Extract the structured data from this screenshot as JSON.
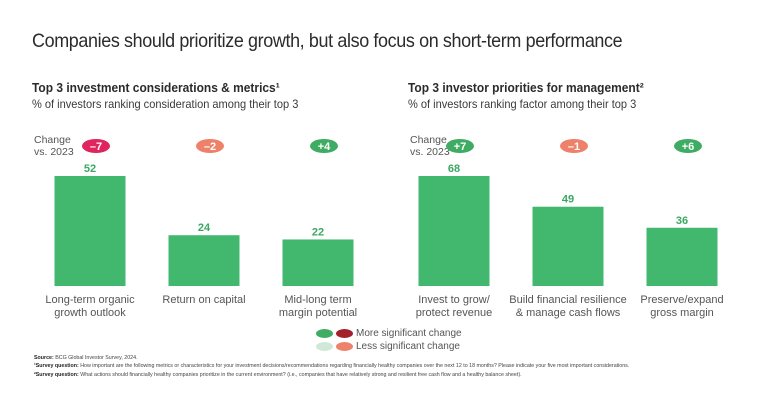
{
  "title": "Companies should prioritize growth, but also focus on short-term performance",
  "change_label_line1": "Change",
  "change_label_line2": "vs. 2023",
  "colors": {
    "bar": "#42b86f",
    "bar_label": "#3aa862",
    "more_sig_positive": "#3fac64",
    "more_sig_negative": "#a31f2c",
    "less_sig_positive": "#cfe9d6",
    "less_sig_negative": "#ee8169",
    "strong_negative_badge": "#e0245e"
  },
  "legend": {
    "more": "More significant change",
    "less": "Less significant change"
  },
  "footnotes": {
    "source_label": "Source:",
    "source_text": " BCG Global Investor Survey, 2024.",
    "q1_label": "¹Survey question:",
    "q1_text": " How important are the following metrics or characteristics for your investment decisions/recommendations regarding financially healthy companies over the next 12 to 18 months? Please indicate your five most important considerations.",
    "q2_label": "²Survey question:",
    "q2_text": " What actions should financially healthy companies prioritize in the current environment? (i.e., companies that have relatively strong and resilient free cash flow and a healthy balance sheet)."
  },
  "chart_data": [
    {
      "type": "bar",
      "title": "Top 3 investment considerations & metrics¹",
      "subtitle": "% of investors ranking consideration among their top 3",
      "categories": [
        [
          "Long-term organic",
          "growth outlook"
        ],
        [
          "Return on capital"
        ],
        [
          "Mid-long term",
          "margin potential"
        ]
      ],
      "values": [
        52,
        24,
        22
      ],
      "changes": [
        {
          "label": "–7",
          "significance": "more",
          "color": "#e0245e"
        },
        {
          "label": "–2",
          "significance": "less",
          "color": "#ee8169"
        },
        {
          "label": "+4",
          "significance": "more",
          "color": "#3fac64"
        }
      ],
      "ylim": [
        0,
        52
      ]
    },
    {
      "type": "bar",
      "title": "Top 3 investor priorities for management²",
      "subtitle": "% of investors ranking factor among their top 3",
      "categories": [
        [
          "Invest to grow/",
          "protect revenue"
        ],
        [
          "Build financial resilience",
          "& manage cash flows"
        ],
        [
          "Preserve/expand",
          "gross margin"
        ]
      ],
      "values": [
        68,
        49,
        36
      ],
      "changes": [
        {
          "label": "+7",
          "significance": "more",
          "color": "#3fac64"
        },
        {
          "label": "–1",
          "significance": "less",
          "color": "#ee8169"
        },
        {
          "label": "+6",
          "significance": "more",
          "color": "#3fac64"
        }
      ],
      "ylim": [
        0,
        68
      ]
    }
  ]
}
